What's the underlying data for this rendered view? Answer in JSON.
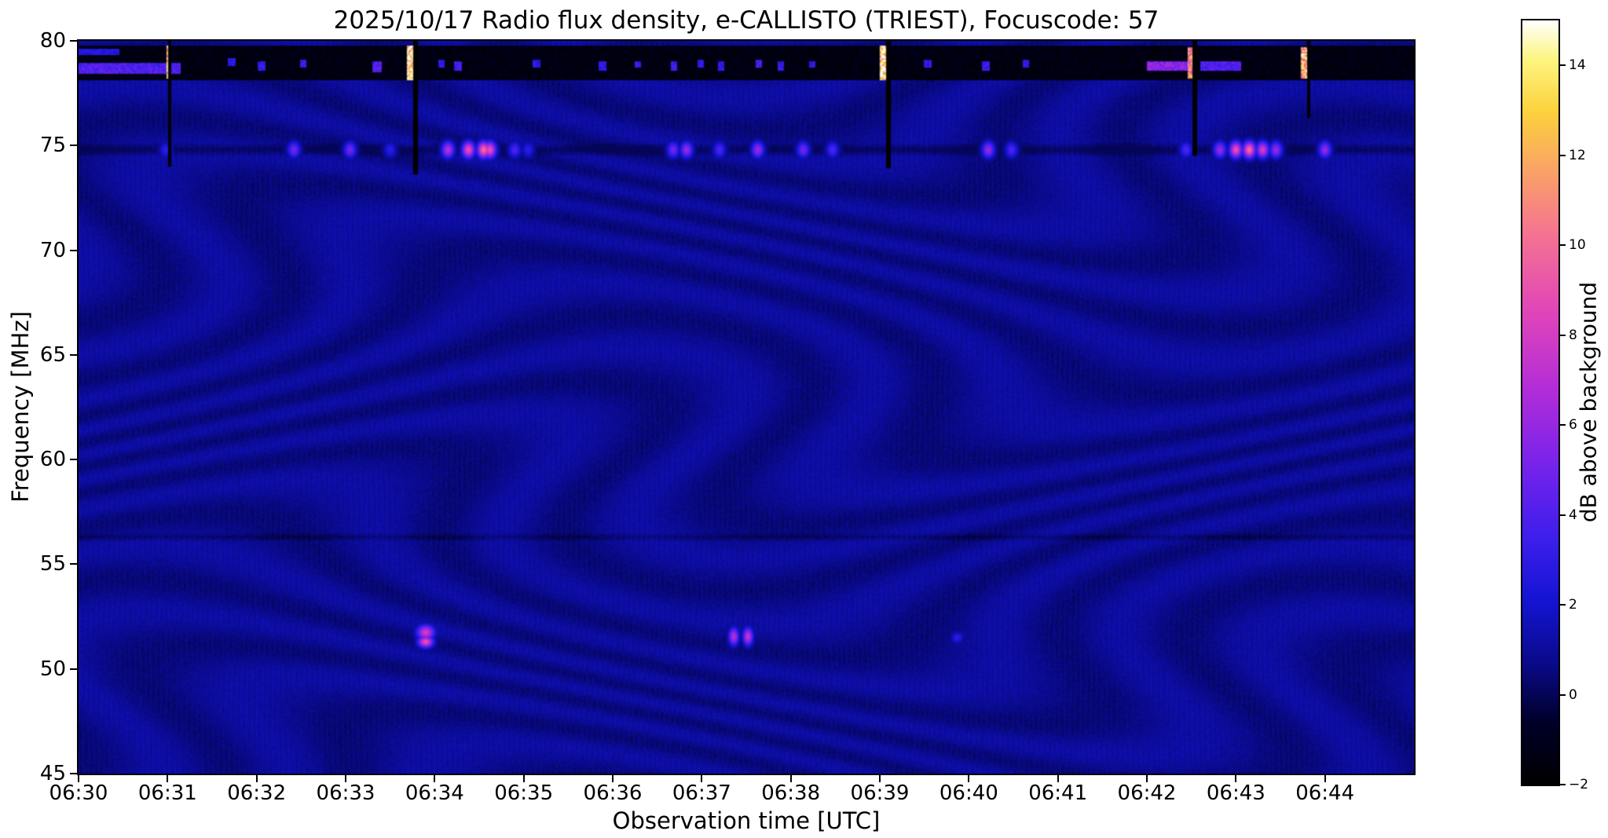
{
  "header": {
    "date": "2025/10/17",
    "instrument": "e-CALLISTO (TRIEST)",
    "focuscode": "57"
  },
  "chart_data": {
    "type": "heatmap",
    "title": "2025/10/17  Radio flux density, e-CALLISTO (TRIEST), Focuscode: 57",
    "xlabel": "Observation time [UTC]",
    "ylabel": "Frequency [MHz]",
    "colorbar_label": "dB above background",
    "x_range_minutes": [
      0,
      15
    ],
    "x_start_time": "06:30",
    "y_range": [
      45,
      80
    ],
    "colorbar_range": [
      -2,
      15
    ],
    "grid": false,
    "legend": false,
    "background_db": 0.8,
    "colormap": "gnuplot2",
    "colormap_stops": [
      [
        0.0,
        [
          0,
          0,
          0
        ]
      ],
      [
        0.08,
        [
          0,
          0,
          40
        ]
      ],
      [
        0.16,
        [
          10,
          10,
          140
        ]
      ],
      [
        0.24,
        [
          20,
          20,
          210
        ]
      ],
      [
        0.32,
        [
          60,
          30,
          235
        ]
      ],
      [
        0.42,
        [
          120,
          35,
          235
        ]
      ],
      [
        0.52,
        [
          180,
          45,
          215
        ]
      ],
      [
        0.62,
        [
          225,
          70,
          185
        ]
      ],
      [
        0.72,
        [
          245,
          115,
          145
        ]
      ],
      [
        0.8,
        [
          250,
          160,
          105
        ]
      ],
      [
        0.88,
        [
          252,
          210,
          60
        ]
      ],
      [
        0.95,
        [
          253,
          245,
          130
        ]
      ],
      [
        1.0,
        [
          255,
          255,
          255
        ]
      ]
    ],
    "x_ticks": [
      {
        "t": 0,
        "label": "06:30"
      },
      {
        "t": 1,
        "label": "06:31"
      },
      {
        "t": 2,
        "label": "06:32"
      },
      {
        "t": 3,
        "label": "06:33"
      },
      {
        "t": 4,
        "label": "06:34"
      },
      {
        "t": 5,
        "label": "06:35"
      },
      {
        "t": 6,
        "label": "06:36"
      },
      {
        "t": 7,
        "label": "06:37"
      },
      {
        "t": 8,
        "label": "06:38"
      },
      {
        "t": 9,
        "label": "06:39"
      },
      {
        "t": 10,
        "label": "06:40"
      },
      {
        "t": 11,
        "label": "06:41"
      },
      {
        "t": 12,
        "label": "06:42"
      },
      {
        "t": 13,
        "label": "06:43"
      },
      {
        "t": 14,
        "label": "06:44"
      }
    ],
    "y_ticks": [
      {
        "f": 80,
        "label": "80"
      },
      {
        "f": 75,
        "label": "75"
      },
      {
        "f": 70,
        "label": "70"
      },
      {
        "f": 65,
        "label": "65"
      },
      {
        "f": 60,
        "label": "60"
      },
      {
        "f": 55,
        "label": "55"
      },
      {
        "f": 50,
        "label": "50"
      },
      {
        "f": 45,
        "label": "45"
      }
    ],
    "colorbar_ticks": [
      {
        "v": -2,
        "label": "−2"
      },
      {
        "v": 0,
        "label": "0"
      },
      {
        "v": 2,
        "label": "2"
      },
      {
        "v": 4,
        "label": "4"
      },
      {
        "v": 6,
        "label": "6"
      },
      {
        "v": 8,
        "label": "8"
      },
      {
        "v": 10,
        "label": "10"
      },
      {
        "v": 12,
        "label": "12"
      },
      {
        "v": 14,
        "label": "14"
      }
    ],
    "features": {
      "top_band": {
        "f_low": 78.15,
        "f_high": 79.75,
        "base_db": -1.4,
        "streaks": [
          {
            "t0": 0.0,
            "t1": 1.15,
            "f0": 78.45,
            "f1": 78.95,
            "db": 4
          },
          {
            "t0": 0.0,
            "t1": 0.45,
            "f0": 79.3,
            "f1": 79.65,
            "db": 2.5
          },
          {
            "t0": 0.98,
            "t1": 1.04,
            "f0": 78.2,
            "f1": 79.8,
            "db": 12
          },
          {
            "t0": 1.68,
            "t1": 1.76,
            "f0": 78.8,
            "f1": 79.2,
            "db": 3
          },
          {
            "t0": 2.02,
            "t1": 2.1,
            "f0": 78.6,
            "f1": 79.0,
            "db": 3
          },
          {
            "t0": 2.48,
            "t1": 2.56,
            "f0": 78.7,
            "f1": 79.1,
            "db": 3.5
          },
          {
            "t0": 3.3,
            "t1": 3.4,
            "f0": 78.5,
            "f1": 79.0,
            "db": 4
          },
          {
            "t0": 3.68,
            "t1": 3.76,
            "f0": 78.15,
            "f1": 79.75,
            "db": 14
          },
          {
            "t0": 4.05,
            "t1": 4.12,
            "f0": 78.7,
            "f1": 79.1,
            "db": 3
          },
          {
            "t0": 4.22,
            "t1": 4.3,
            "f0": 78.6,
            "f1": 79.0,
            "db": 3.5
          },
          {
            "t0": 5.1,
            "t1": 5.18,
            "f0": 78.7,
            "f1": 79.1,
            "db": 3
          },
          {
            "t0": 5.85,
            "t1": 5.93,
            "f0": 78.6,
            "f1": 79.0,
            "db": 3
          },
          {
            "t0": 6.25,
            "t1": 6.32,
            "f0": 78.7,
            "f1": 79.05,
            "db": 3
          },
          {
            "t0": 6.65,
            "t1": 6.72,
            "f0": 78.6,
            "f1": 79.0,
            "db": 3.5
          },
          {
            "t0": 6.95,
            "t1": 7.02,
            "f0": 78.7,
            "f1": 79.1,
            "db": 3
          },
          {
            "t0": 7.18,
            "t1": 7.25,
            "f0": 78.6,
            "f1": 79.0,
            "db": 3
          },
          {
            "t0": 7.6,
            "t1": 7.68,
            "f0": 78.7,
            "f1": 79.1,
            "db": 3.5
          },
          {
            "t0": 7.85,
            "t1": 7.93,
            "f0": 78.6,
            "f1": 79.0,
            "db": 3
          },
          {
            "t0": 8.2,
            "t1": 8.28,
            "f0": 78.7,
            "f1": 79.05,
            "db": 3
          },
          {
            "t0": 9.0,
            "t1": 9.08,
            "f0": 78.15,
            "f1": 79.75,
            "db": 14
          },
          {
            "t0": 9.5,
            "t1": 9.58,
            "f0": 78.7,
            "f1": 79.1,
            "db": 3
          },
          {
            "t0": 10.15,
            "t1": 10.24,
            "f0": 78.6,
            "f1": 79.0,
            "db": 3.5
          },
          {
            "t0": 10.6,
            "t1": 10.68,
            "f0": 78.7,
            "f1": 79.1,
            "db": 3
          },
          {
            "t0": 12.0,
            "t1": 12.55,
            "f0": 78.55,
            "f1": 79.05,
            "db": 5.5
          },
          {
            "t0": 12.46,
            "t1": 12.52,
            "f0": 78.2,
            "f1": 79.7,
            "db": 11
          },
          {
            "t0": 12.6,
            "t1": 13.05,
            "f0": 78.6,
            "f1": 79.0,
            "db": 4
          },
          {
            "t0": 13.73,
            "t1": 13.8,
            "f0": 78.2,
            "f1": 79.7,
            "db": 12
          }
        ]
      },
      "rfi_line": {
        "freq": 74.8,
        "base_depth_db": 1.1,
        "bursts": [
          {
            "t": 0.98,
            "db": 3
          },
          {
            "t": 2.42,
            "db": 5
          },
          {
            "t": 3.05,
            "db": 5
          },
          {
            "t": 3.5,
            "db": 3
          },
          {
            "t": 4.15,
            "db": 7
          },
          {
            "t": 4.38,
            "db": 9
          },
          {
            "t": 4.55,
            "db": 10
          },
          {
            "t": 4.62,
            "db": 9
          },
          {
            "t": 4.9,
            "db": 4
          },
          {
            "t": 5.05,
            "db": 3
          },
          {
            "t": 6.68,
            "db": 5
          },
          {
            "t": 6.83,
            "db": 6
          },
          {
            "t": 7.2,
            "db": 4
          },
          {
            "t": 7.63,
            "db": 6
          },
          {
            "t": 8.14,
            "db": 5
          },
          {
            "t": 8.47,
            "db": 4
          },
          {
            "t": 10.22,
            "db": 6
          },
          {
            "t": 10.48,
            "db": 4
          },
          {
            "t": 12.44,
            "db": 4
          },
          {
            "t": 12.82,
            "db": 6
          },
          {
            "t": 13.0,
            "db": 9
          },
          {
            "t": 13.15,
            "db": 10
          },
          {
            "t": 13.3,
            "db": 8
          },
          {
            "t": 13.45,
            "db": 6
          },
          {
            "t": 14.0,
            "db": 6
          }
        ]
      },
      "faint_line": {
        "freq": 56.3,
        "depth_db": 0.7
      },
      "gaps": [
        {
          "t": 1.03,
          "f_bottom": 74.0,
          "w": 0.04
        },
        {
          "t": 3.78,
          "f_bottom": 73.6,
          "w": 0.05
        },
        {
          "t": 9.1,
          "f_bottom": 73.9,
          "w": 0.05
        },
        {
          "t": 12.54,
          "f_bottom": 74.5,
          "w": 0.04
        },
        {
          "t": 13.82,
          "f_bottom": 76.3,
          "w": 0.03
        }
      ],
      "low_freq_blobs": [
        {
          "t": 3.9,
          "f": 51.75,
          "db": 8,
          "dt": 0.07,
          "df": 0.25
        },
        {
          "t": 3.9,
          "f": 51.3,
          "db": 9,
          "dt": 0.06,
          "df": 0.2
        },
        {
          "t": 7.36,
          "f": 51.55,
          "db": 7,
          "dt": 0.04,
          "df": 0.3
        },
        {
          "t": 7.52,
          "f": 51.55,
          "db": 7.5,
          "dt": 0.04,
          "df": 0.3
        },
        {
          "t": 9.87,
          "f": 51.5,
          "db": 3,
          "dt": 0.05,
          "df": 0.2
        }
      ]
    }
  }
}
